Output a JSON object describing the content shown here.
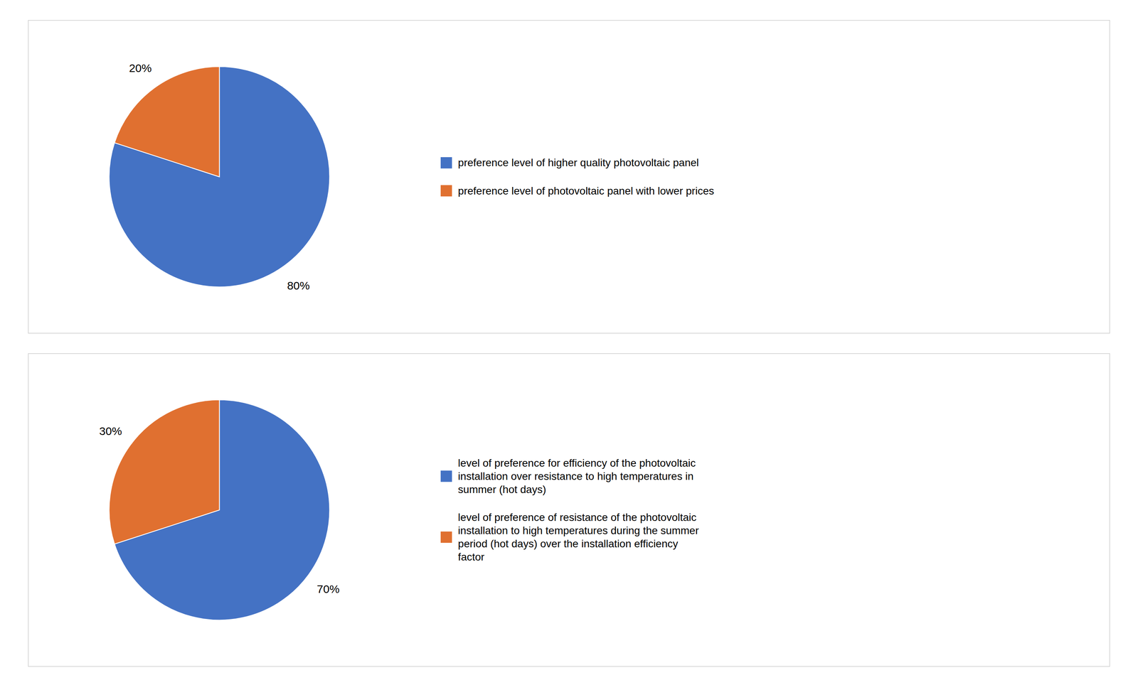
{
  "chart_data": [
    {
      "type": "pie",
      "categories": [
        "preference level of higher quality photovoltaic panel",
        "preference level of photovoltaic panel with lower prices"
      ],
      "values": [
        80,
        20
      ],
      "value_labels": [
        "80%",
        "20%"
      ],
      "colors": [
        "#4472C4",
        "#E07030"
      ],
      "data_labels": true,
      "legend": "right"
    },
    {
      "type": "pie",
      "categories": [
        "level of preference for efficiency of the photovoltaic\ninstallation over resistance to high temperatures in\nsummer (hot days)",
        "level of preference of resistance of the photovoltaic\ninstallation to high temperatures during the summer\nperiod (hot days) over the installation efficiency\nfactor"
      ],
      "values": [
        70,
        30
      ],
      "value_labels": [
        "70%",
        "30%"
      ],
      "colors": [
        "#4472C4",
        "#E07030"
      ],
      "data_labels": true,
      "legend": "right"
    }
  ]
}
